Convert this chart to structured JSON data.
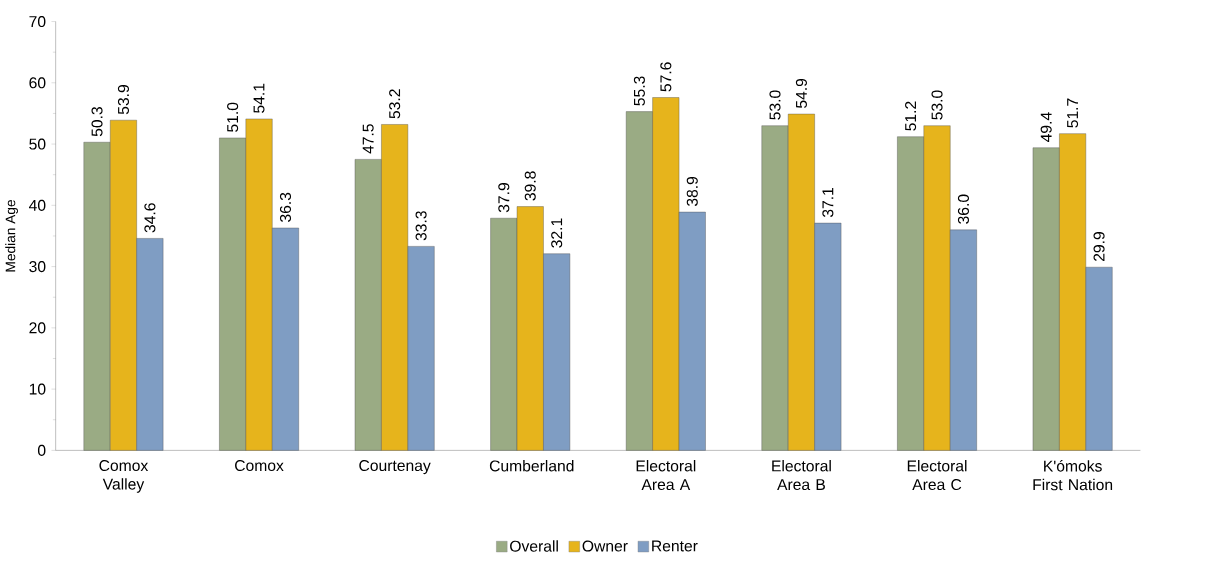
{
  "chart_data": {
    "type": "bar",
    "ylabel": "Median Age",
    "categories": [
      "Comox Valley",
      "Comox",
      "Courtenay",
      "Cumberland",
      "Electoral Area A",
      "Electoral Area B",
      "Electoral Area C",
      "K'ómoks First Nation"
    ],
    "series": [
      {
        "name": "Overall",
        "color": "#9aab84",
        "values": [
          50.3,
          51.0,
          47.5,
          37.9,
          55.3,
          53.0,
          51.2,
          49.4
        ],
        "value_labels": [
          "50.3",
          "51.0",
          "47.5",
          "37.9",
          "55.3",
          "53.0",
          "51.2",
          "49.4"
        ]
      },
      {
        "name": "Owner",
        "color": "#e6b41c",
        "values": [
          53.9,
          54.1,
          53.2,
          39.8,
          57.6,
          54.9,
          53.0,
          51.7
        ],
        "value_labels": [
          "53.9",
          "54.1",
          "53.2",
          "39.8",
          "57.6",
          "54.9",
          "53.0",
          "51.7"
        ]
      },
      {
        "name": "Renter",
        "color": "#7f9dc3",
        "values": [
          34.6,
          36.3,
          33.3,
          32.1,
          38.9,
          37.1,
          36.0,
          29.9
        ],
        "value_labels": [
          "34.6",
          "36.3",
          "33.3",
          "32.1",
          "38.9",
          "37.1",
          "36.0",
          "29.9"
        ]
      }
    ],
    "ylim": [
      0,
      70
    ],
    "yticks": [
      0,
      10,
      20,
      30,
      40,
      50,
      60,
      70
    ],
    "legend": "bottom",
    "grid": false
  }
}
